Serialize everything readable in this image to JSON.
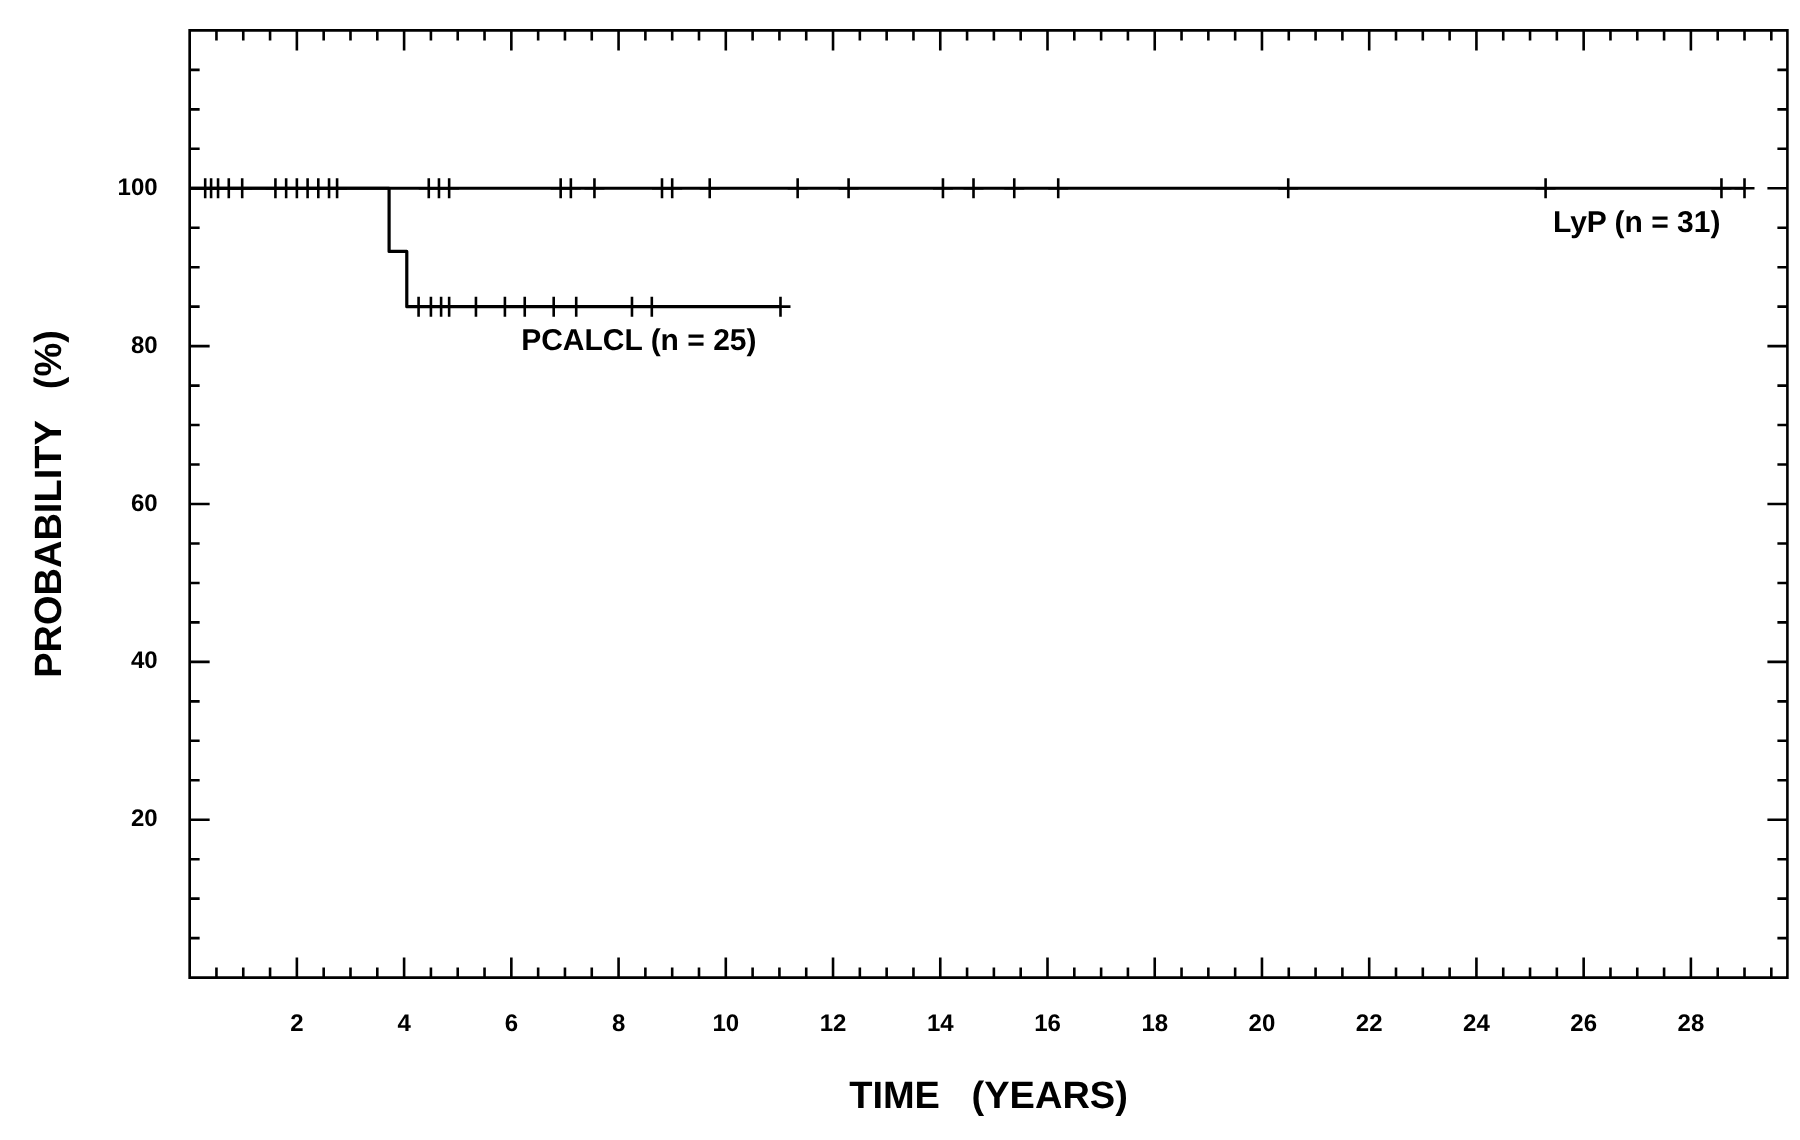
{
  "chart_data": {
    "type": "step",
    "xlabel": "TIME   (YEARS)",
    "ylabel": "PROBABILITY   (%)",
    "xlim": [
      0,
      29.8
    ],
    "ylim": [
      0,
      120
    ],
    "xticks": [
      {
        "value": 0.5,
        "label": null
      },
      {
        "value": 1,
        "label": null
      },
      {
        "value": 1.5,
        "label": null
      },
      2,
      {
        "value": 2.5,
        "label": null
      },
      {
        "value": 3,
        "label": null
      },
      {
        "value": 3.5,
        "label": null
      },
      4,
      {
        "value": 4.5,
        "label": null
      },
      {
        "value": 5,
        "label": null
      },
      {
        "value": 5.5,
        "label": null
      },
      6,
      {
        "value": 6.5,
        "label": null
      },
      {
        "value": 7,
        "label": null
      },
      {
        "value": 7.5,
        "label": null
      },
      8,
      {
        "value": 8.5,
        "label": null
      },
      {
        "value": 9,
        "label": null
      },
      {
        "value": 9.5,
        "label": null
      },
      10,
      {
        "value": 10.5,
        "label": null
      },
      {
        "value": 11,
        "label": null
      },
      {
        "value": 11.5,
        "label": null
      },
      12,
      {
        "value": 12.5,
        "label": null
      },
      {
        "value": 13,
        "label": null
      },
      {
        "value": 13.5,
        "label": null
      },
      14,
      {
        "value": 14.5,
        "label": null
      },
      {
        "value": 15,
        "label": null
      },
      {
        "value": 15.5,
        "label": null
      },
      16,
      {
        "value": 16.5,
        "label": null
      },
      {
        "value": 17,
        "label": null
      },
      {
        "value": 17.5,
        "label": null
      },
      18,
      {
        "value": 18.5,
        "label": null
      },
      {
        "value": 19,
        "label": null
      },
      {
        "value": 19.5,
        "label": null
      },
      20,
      {
        "value": 20.5,
        "label": null
      },
      {
        "value": 21,
        "label": null
      },
      {
        "value": 21.5,
        "label": null
      },
      22,
      {
        "value": 22.5,
        "label": null
      },
      {
        "value": 23,
        "label": null
      },
      {
        "value": 23.5,
        "label": null
      },
      24,
      {
        "value": 24.5,
        "label": null
      },
      {
        "value": 25,
        "label": null
      },
      {
        "value": 25.5,
        "label": null
      },
      26,
      {
        "value": 26.5,
        "label": null
      },
      {
        "value": 27,
        "label": null
      },
      {
        "value": 27.5,
        "label": null
      },
      28,
      {
        "value": 28.5,
        "label": null
      },
      {
        "value": 29,
        "label": null
      },
      {
        "value": 29.5,
        "label": null
      }
    ],
    "yticks": [
      {
        "value": 5,
        "label": null
      },
      {
        "value": 10,
        "label": null
      },
      {
        "value": 15,
        "label": null
      },
      20,
      {
        "value": 25,
        "label": null
      },
      {
        "value": 30,
        "label": null
      },
      {
        "value": 35,
        "label": null
      },
      40,
      {
        "value": 45,
        "label": null
      },
      {
        "value": 50,
        "label": null
      },
      {
        "value": 55,
        "label": null
      },
      60,
      {
        "value": 65,
        "label": null
      },
      {
        "value": 70,
        "label": null
      },
      {
        "value": 75,
        "label": null
      },
      80,
      {
        "value": 85,
        "label": null
      },
      {
        "value": 90,
        "label": null
      },
      {
        "value": 95,
        "label": null
      },
      100,
      {
        "value": 105,
        "label": null
      },
      {
        "value": 110,
        "label": null
      },
      {
        "value": 115,
        "label": null
      }
    ],
    "grid": false,
    "series": [
      {
        "name": "LyP (n = 31)",
        "color": "#000000",
        "marker": "none",
        "x": [
          0,
          29
        ],
        "values": [
          100,
          100
        ]
      },
      {
        "name": "PCALCL (n = 25)",
        "color": "#000000",
        "marker": "none",
        "x": [
          0,
          3.72,
          4.05,
          11.02
        ],
        "values": [
          100,
          92,
          85,
          85
        ]
      },
      {
        "type": "scatter",
        "color": "#000000",
        "marker": "cross",
        "x": [
          0.29,
          0.4,
          0.53,
          0.73,
          0.98,
          1.6,
          1.8,
          2.0,
          2.2,
          2.4,
          2.6,
          2.75,
          4.46,
          4.65,
          4.84,
          6.92,
          7.11,
          7.55,
          8.81,
          9.0,
          9.7,
          11.34,
          12.29,
          14.05,
          14.62,
          15.38,
          16.2,
          20.49,
          25.29,
          28.57,
          29.0
        ],
        "values": [
          100,
          100,
          100,
          100,
          100,
          100,
          100,
          100,
          100,
          100,
          100,
          100,
          100,
          100,
          100,
          100,
          100,
          100,
          100,
          100,
          100,
          100,
          100,
          100,
          100,
          100,
          100,
          100,
          100,
          100,
          100
        ]
      },
      {
        "type": "scatter",
        "color": "#000000",
        "marker": "cross",
        "x": [
          4.27,
          4.5,
          4.69,
          4.84,
          5.34,
          5.88,
          6.25,
          6.79,
          7.21,
          8.25,
          8.62,
          11.02
        ],
        "values": [
          85,
          85,
          85,
          85,
          85,
          85,
          85,
          85,
          85,
          85,
          85,
          85
        ]
      }
    ]
  }
}
